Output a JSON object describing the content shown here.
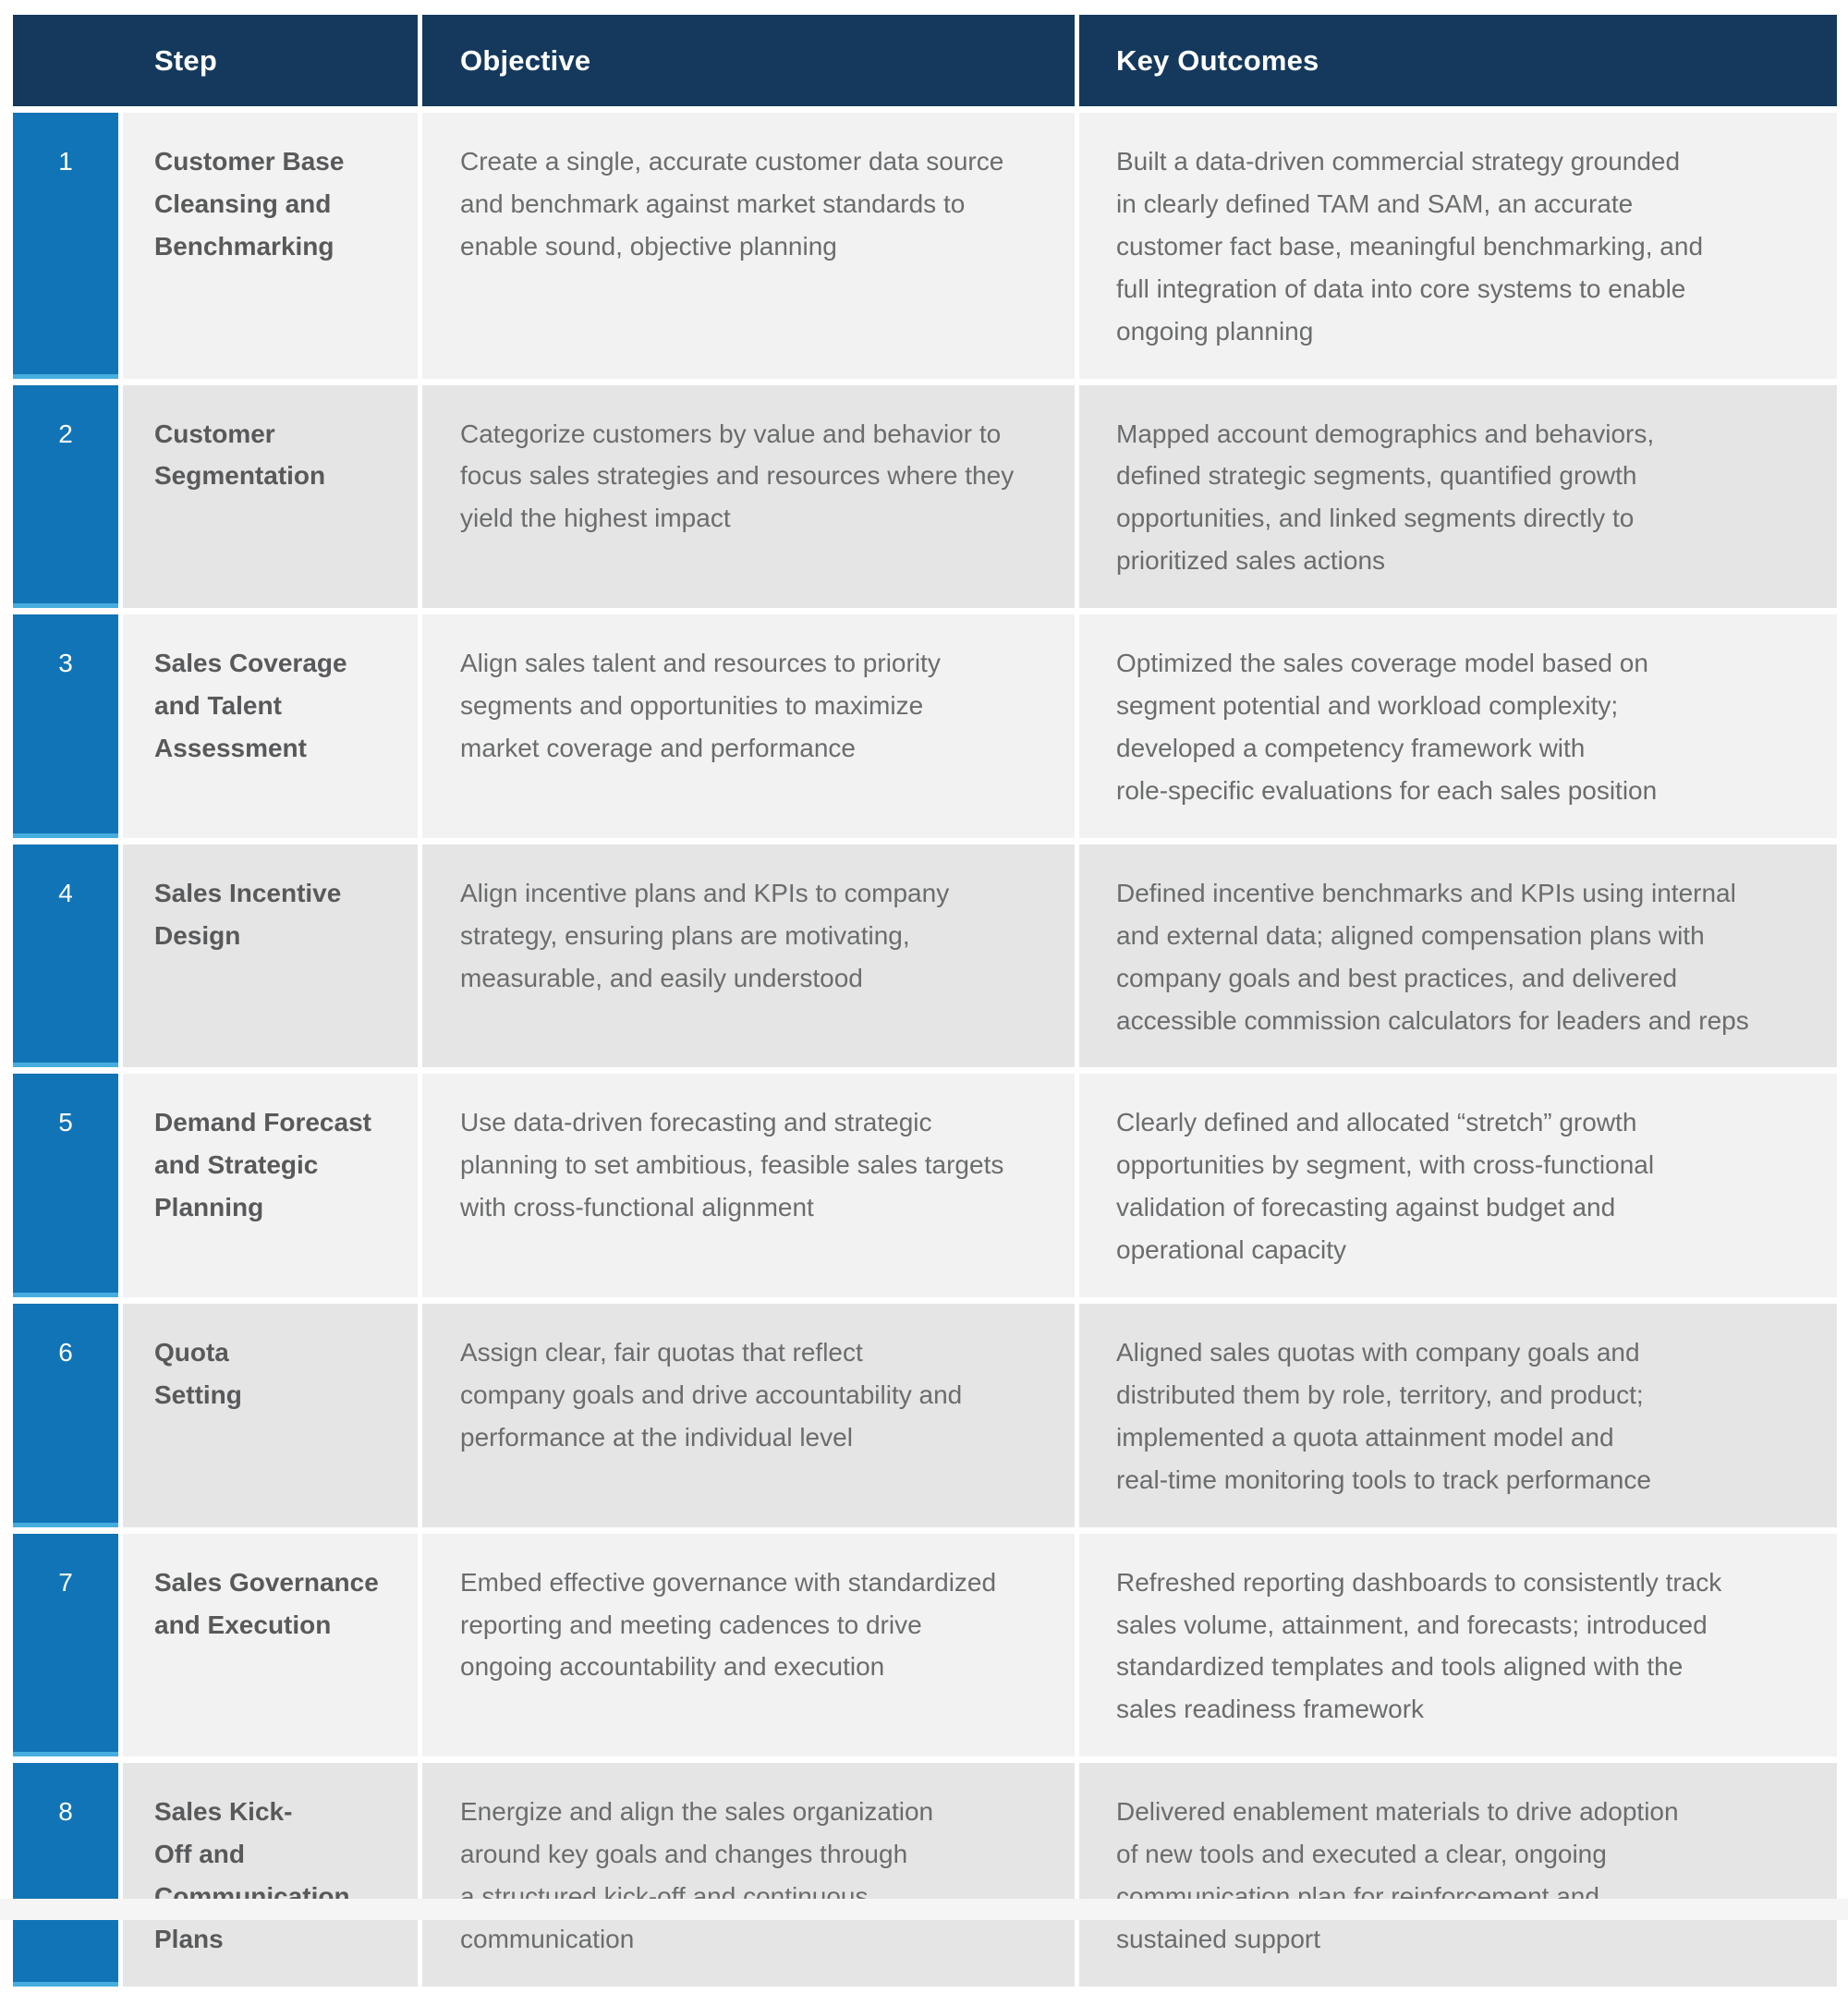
{
  "colors": {
    "header_bg": "#14395C",
    "number_column_bg": "#1174B7",
    "number_column_accent": "#45AEDF",
    "row_light_bg": "#F2F2F2",
    "row_dark_bg": "#E5E5E5",
    "header_text": "#FFFFFF",
    "step_text": "#58595B",
    "body_text": "#6A6C6E"
  },
  "table": {
    "columns": [
      "Step",
      "Objective",
      "Key Outcomes"
    ],
    "rows": [
      {
        "num": "1",
        "step": "Customer Base\nCleansing and\nBenchmarking",
        "objective": "Create a single, accurate customer data source\nand benchmark against market standards to\nenable sound, objective planning",
        "outcomes": "Built a data-driven commercial strategy grounded\nin clearly defined TAM and SAM, an accurate\ncustomer fact base, meaningful benchmarking, and\nfull integration of data into core systems to enable\nongoing planning"
      },
      {
        "num": "2",
        "step": "Customer\nSegmentation",
        "objective": "Categorize customers by value and behavior to\nfocus sales strategies and resources where they\nyield the highest impact",
        "outcomes": "Mapped account demographics and behaviors,\ndefined strategic segments, quantified growth\nopportunities, and linked segments directly to\nprioritized sales actions"
      },
      {
        "num": "3",
        "step": "Sales Coverage\nand Talent\nAssessment",
        "objective": "Align sales talent and resources to priority\nsegments and opportunities to maximize\nmarket coverage and performance",
        "outcomes": "Optimized the sales coverage model based on\nsegment potential and workload complexity;\ndeveloped a competency framework with\nrole-specific evaluations for each sales position"
      },
      {
        "num": "4",
        "step": "Sales Incentive\nDesign",
        "objective": "Align incentive plans and KPIs to company\nstrategy, ensuring plans are motivating,\nmeasurable, and easily understood",
        "outcomes": "Defined incentive benchmarks and KPIs using internal\nand external data; aligned compensation plans with\ncompany goals and best practices, and delivered\naccessible commission calculators for leaders and reps"
      },
      {
        "num": "5",
        "step": "Demand Forecast\nand Strategic\nPlanning",
        "objective": "Use data-driven forecasting and strategic\nplanning to set ambitious, feasible sales targets\nwith cross-functional alignment",
        "outcomes": "Clearly defined and allocated “stretch” growth\nopportunities by segment, with cross-functional\nvalidation of forecasting against budget and\noperational capacity"
      },
      {
        "num": "6",
        "step": "Quota\nSetting",
        "objective": "Assign clear, fair quotas that reflect\ncompany goals and drive accountability and\nperformance at the individual level",
        "outcomes": "Aligned sales quotas with company goals and\ndistributed them by role, territory, and product;\nimplemented a quota attainment model and\nreal-time monitoring tools to track performance"
      },
      {
        "num": "7",
        "step": "Sales Governance\nand Execution",
        "objective": "Embed effective governance with standardized\nreporting and meeting cadences to drive\nongoing accountability and execution",
        "outcomes": "Refreshed reporting dashboards to consistently track\nsales volume, attainment, and forecasts; introduced\nstandardized templates and tools aligned with the\nsales readiness framework"
      },
      {
        "num": "8",
        "step": "Sales Kick-\nOff and\nCommunication\nPlans",
        "objective": "Energize and align the sales organization\naround key goals and changes through\na structured kick-off and continuous\ncommunication",
        "outcomes": "Delivered enablement materials to drive adoption\nof new tools and executed a clear, ongoing\ncommunication plan for reinforcement and\nsustained support"
      }
    ]
  }
}
